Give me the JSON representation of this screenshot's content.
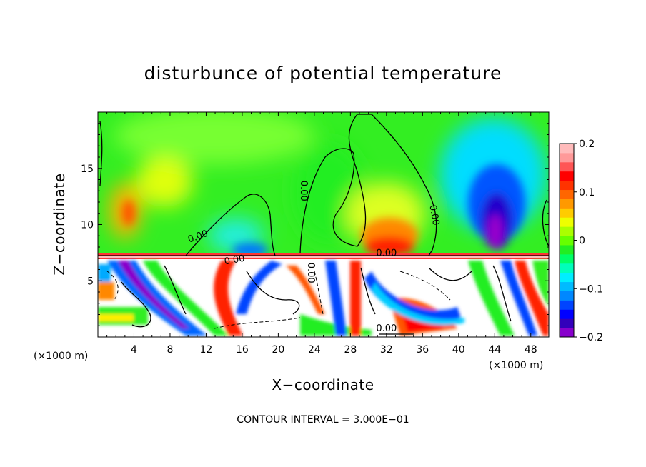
{
  "chart_data": {
    "type": "heatmap",
    "title": "disturbunce of potential temperature",
    "xlabel": "X−coordinate",
    "ylabel": "Z−coordinate",
    "x_unit_left": "(×1000 m)",
    "x_unit_right": "(×1000 m)",
    "footer": "CONTOUR INTERVAL = 3.000E−01",
    "xlim": [
      0,
      50
    ],
    "ylim": [
      0,
      20
    ],
    "x_ticks": [
      4,
      8,
      12,
      16,
      20,
      24,
      28,
      32,
      36,
      40,
      44,
      48
    ],
    "x_tick_labels": [
      "4",
      "8",
      "12",
      "16",
      "20",
      "24",
      "28",
      "32",
      "36",
      "40",
      "44",
      "48"
    ],
    "y_ticks": [
      5,
      10,
      15
    ],
    "y_tick_labels": [
      "5",
      "10",
      "15"
    ],
    "colorbar": {
      "range": [
        -0.2,
        0.2
      ],
      "tick_values": [
        0.2,
        0.1,
        0,
        -0.1,
        -0.2
      ],
      "tick_labels": [
        "0.2",
        "0.1",
        "0",
        "−0.1",
        "−0.2"
      ],
      "colors": [
        "#8800cc",
        "#3300bb",
        "#0000ff",
        "#0044ff",
        "#0088ff",
        "#00bbff",
        "#00eeff",
        "#00ffbb",
        "#00ff66",
        "#22ee22",
        "#66ff00",
        "#aaff00",
        "#eeff00",
        "#ffcc00",
        "#ff9900",
        "#ff6600",
        "#ff3300",
        "#ff0000",
        "#ff5555",
        "#ff9999",
        "#ffbbbb"
      ]
    },
    "contour_labels": [
      {
        "text": "0.00",
        "x": 22.5,
        "y": 13.0,
        "rotate": 90
      },
      {
        "text": "0.00",
        "x": 37.0,
        "y": 10.8,
        "rotate": 80
      },
      {
        "text": "0.00",
        "x": 11.2,
        "y": 8.7,
        "rotate": -20
      },
      {
        "text": "0.00",
        "x": 15.2,
        "y": 6.6,
        "rotate": -10
      },
      {
        "text": "0.00",
        "x": 32.0,
        "y": 7.2,
        "rotate": 0
      },
      {
        "text": "0.00",
        "x": 23.3,
        "y": 5.7,
        "rotate": 90
      },
      {
        "text": "0.00",
        "x": 32.0,
        "y": 0.5,
        "rotate": 0
      }
    ],
    "grid": false
  }
}
